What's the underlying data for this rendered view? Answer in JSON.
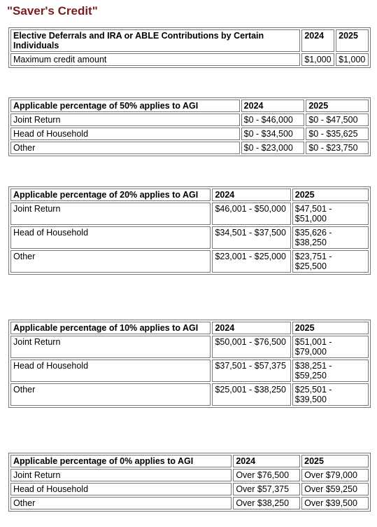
{
  "title": "\"Saver's Credit\"",
  "table1": {
    "header": [
      "Elective Deferrals and IRA or ABLE Contributions by Certain Individuals",
      "2024",
      "2025"
    ],
    "rows": [
      [
        "Maximum credit amount",
        "$1,000",
        "$1,000"
      ]
    ]
  },
  "table2": {
    "header": [
      "Applicable percentage of 50% applies to AGI",
      "2024",
      "2025"
    ],
    "rows": [
      [
        "Joint Return",
        "$0 - $46,000",
        "$0 - $47,500"
      ],
      [
        "Head of Household",
        "$0 - $34,500",
        "$0 - $35,625"
      ],
      [
        "Other",
        "$0 - $23,000",
        "$0 - $23,750"
      ]
    ]
  },
  "table3": {
    "header": [
      "Applicable percentage of 20% applies to AGI",
      "2024",
      "2025"
    ],
    "rows": [
      [
        "Joint Return",
        "$46,001 - $50,000",
        "$47,501 - $51,000"
      ],
      [
        "Head of Household",
        "$34,501 - $37,500",
        "$35,626 - $38,250"
      ],
      [
        "Other",
        "$23,001 - $25,000",
        "$23,751 - $25,500"
      ]
    ]
  },
  "table4": {
    "header": [
      "Applicable percentage of 10% applies to AGI",
      "2024",
      "2025"
    ],
    "rows": [
      [
        "Joint Return",
        "$50,001 - $76,500",
        "$51,001 - $79,000"
      ],
      [
        "Head of Household",
        "$37,501 - $57,375",
        "$38,251 - $59,250"
      ],
      [
        "Other",
        "$25,001 - $38,250",
        "$25,501 - $39,500"
      ]
    ]
  },
  "table5": {
    "header": [
      "Applicable percentage of 0% applies to AGI",
      "2024",
      "2025"
    ],
    "rows": [
      [
        "Joint Return",
        "Over $76,500",
        "Over $79,000"
      ],
      [
        "Head of Household",
        "Over $57,375",
        "Over $59,250"
      ],
      [
        "Other",
        "Over $38,250",
        "Over $39,500"
      ]
    ]
  }
}
